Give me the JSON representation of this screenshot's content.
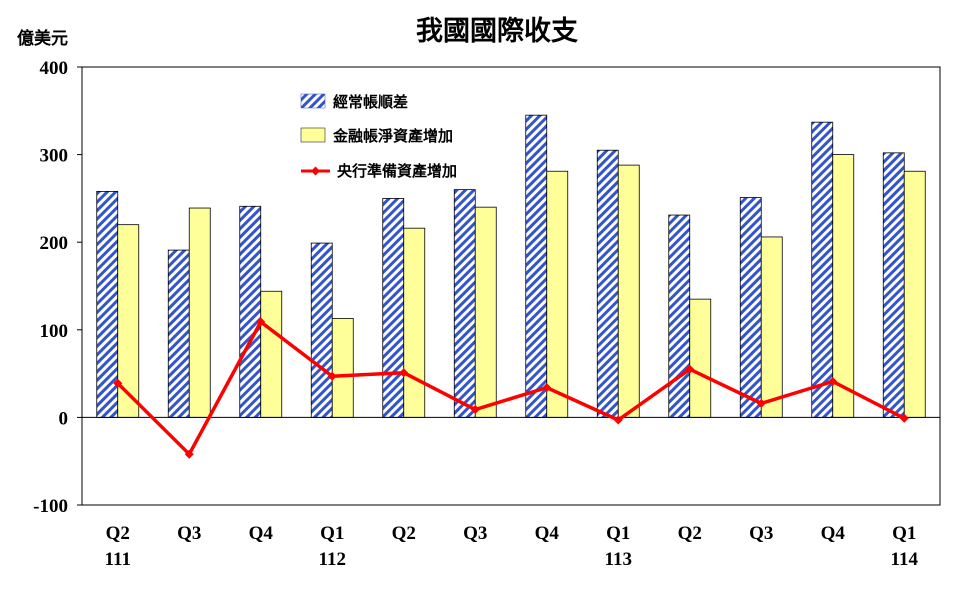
{
  "chart_data": {
    "type": "bar",
    "title": "我國國際收支",
    "ylabel": "億美元",
    "xlabel": "",
    "ylim": [
      -100,
      400
    ],
    "yticks": [
      400,
      300,
      200,
      100,
      0,
      -100
    ],
    "grid": false,
    "legend_position": "top-left",
    "categories": [
      {
        "quarter": "Q2",
        "year": "111"
      },
      {
        "quarter": "Q3",
        "year": ""
      },
      {
        "quarter": "Q4",
        "year": ""
      },
      {
        "quarter": "Q1",
        "year": "112"
      },
      {
        "quarter": "Q2",
        "year": ""
      },
      {
        "quarter": "Q3",
        "year": ""
      },
      {
        "quarter": "Q4",
        "year": ""
      },
      {
        "quarter": "Q1",
        "year": "113"
      },
      {
        "quarter": "Q2",
        "year": ""
      },
      {
        "quarter": "Q3",
        "year": ""
      },
      {
        "quarter": "Q4",
        "year": ""
      },
      {
        "quarter": "Q1",
        "year": "114"
      }
    ],
    "series": [
      {
        "name": "經常帳順差",
        "type": "bar",
        "style": "blue-diagonal-hatch",
        "color": "#3355cc",
        "values": [
          258,
          191,
          241,
          199,
          250,
          260,
          345,
          305,
          231,
          251,
          337,
          302
        ]
      },
      {
        "name": "金融帳淨資產增加",
        "type": "bar",
        "style": "solid",
        "color": "#ffff99",
        "values": [
          220,
          239,
          144,
          113,
          216,
          240,
          281,
          288,
          135,
          206,
          300,
          281
        ]
      },
      {
        "name": "央行準備資產增加",
        "type": "line",
        "color": "#ff0000",
        "values": [
          39,
          -42,
          109,
          47,
          51,
          9,
          34,
          -3,
          55,
          16,
          41,
          -1
        ]
      }
    ]
  }
}
